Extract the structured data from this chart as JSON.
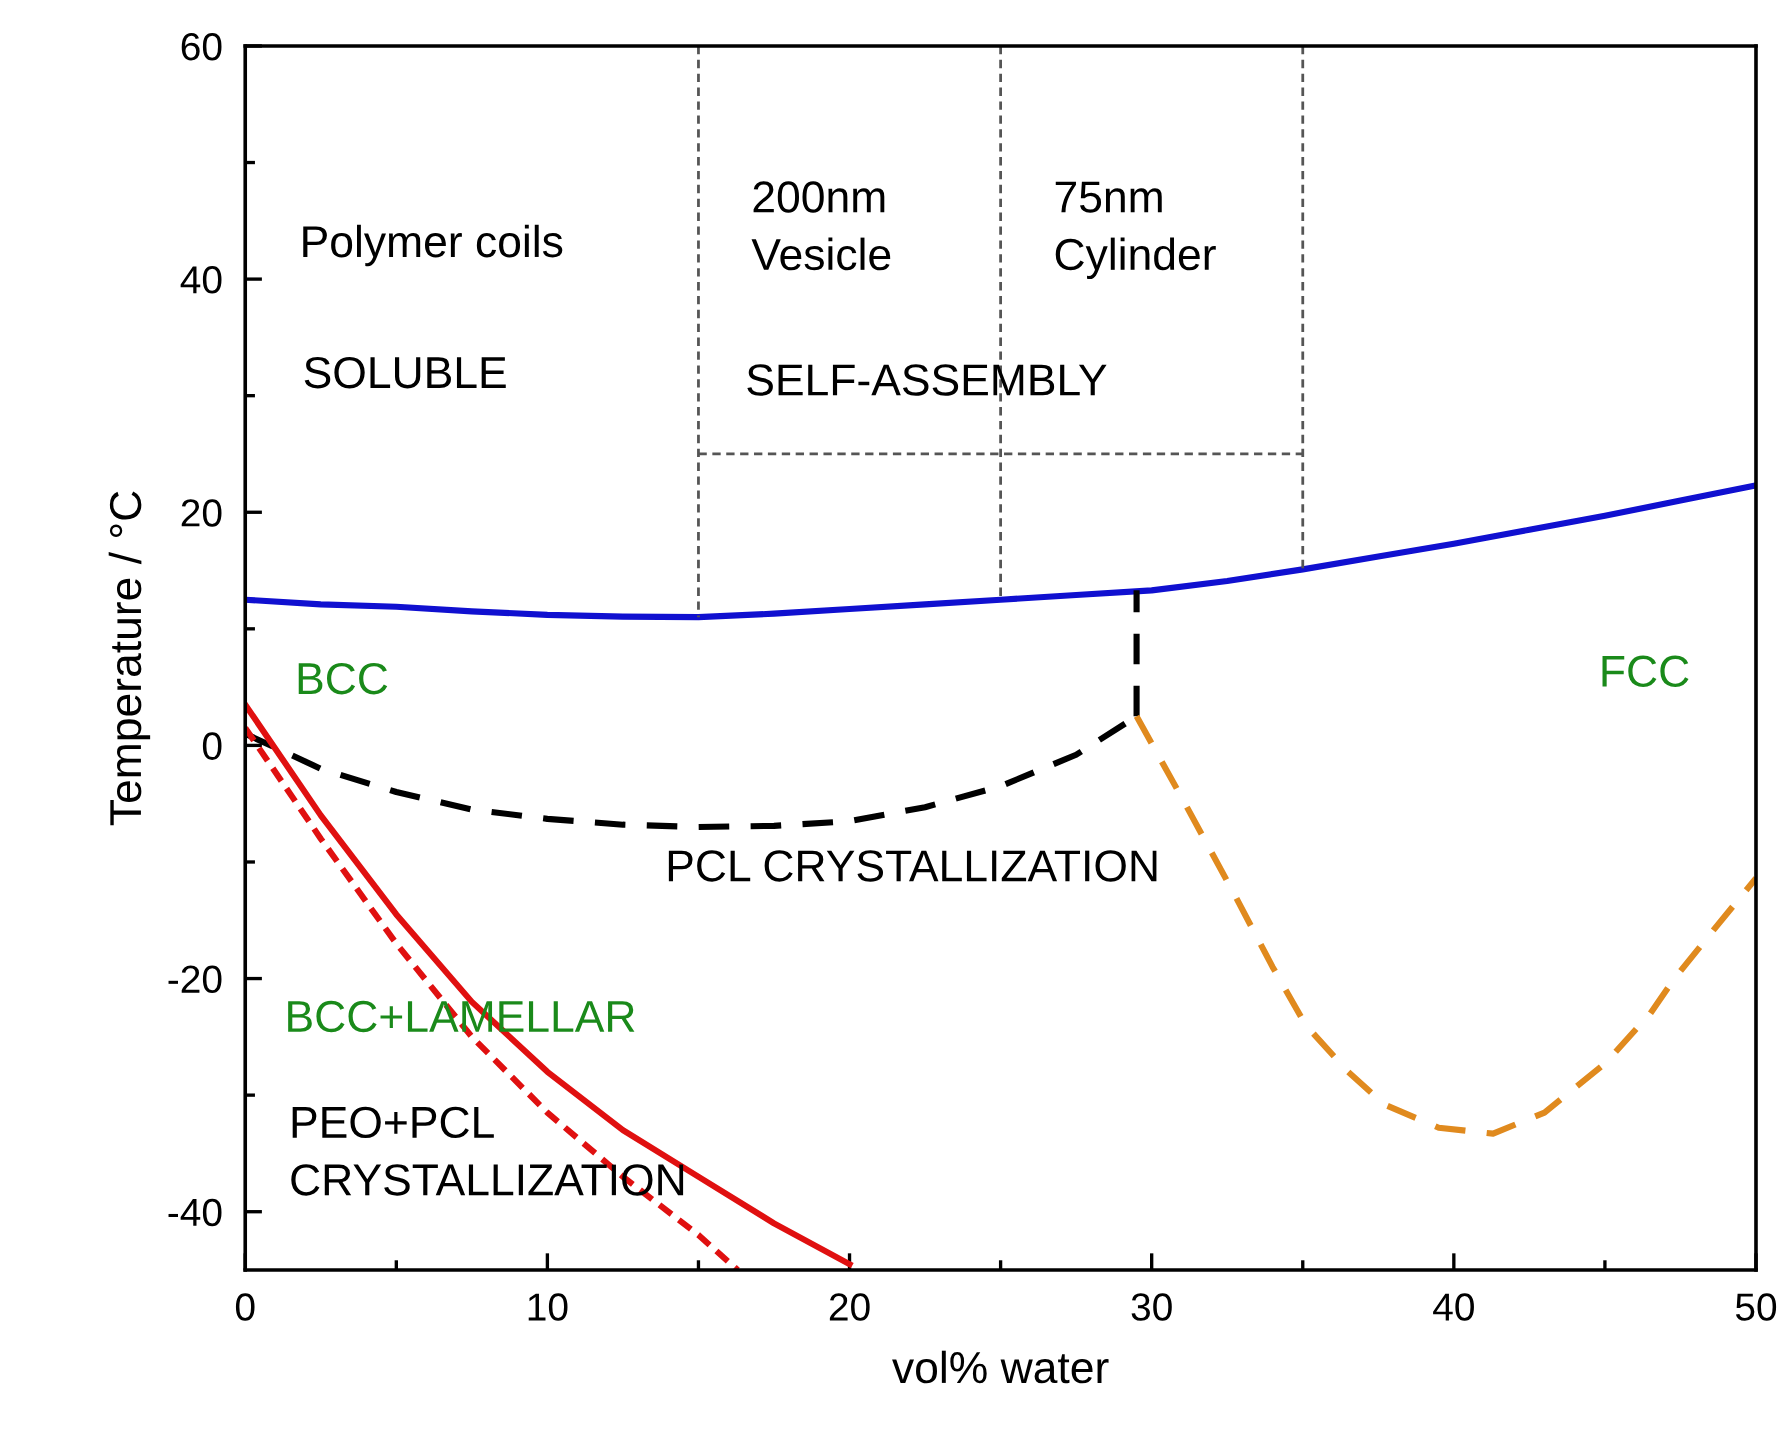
{
  "chart_data": {
    "type": "line",
    "xlabel": "vol% water",
    "ylabel": "Temperature / °C",
    "xlim": [
      0,
      50
    ],
    "ylim": [
      -45,
      60
    ],
    "xticks": [
      0,
      {
        "value": 5,
        "label": null
      },
      10,
      {
        "value": 15,
        "label": null
      },
      20,
      {
        "value": 25,
        "label": null
      },
      30,
      {
        "value": 35,
        "label": null
      },
      40,
      {
        "value": 45,
        "label": null
      },
      50
    ],
    "yticks": [
      {
        "value": -40,
        "label": "-40"
      },
      {
        "value": -30,
        "label": null
      },
      {
        "value": -20,
        "label": "-20"
      },
      {
        "value": -10,
        "label": null
      },
      0,
      {
        "value": 10,
        "label": null
      },
      20,
      {
        "value": 30,
        "label": null
      },
      40,
      {
        "value": 50,
        "label": null
      },
      60
    ],
    "grid": false,
    "legend": false,
    "marker": "none",
    "series": [
      {
        "color": "#1010d0",
        "line_style": "solid",
        "x": [
          0,
          2.5,
          5,
          7.5,
          10,
          12.5,
          15,
          17.5,
          20,
          22.5,
          25,
          27.5,
          30,
          32.5,
          35,
          37.5,
          40,
          42.5,
          45,
          47.5,
          50
        ],
        "values": [
          12.5,
          12.1,
          11.9,
          11.5,
          11.2,
          11.05,
          11,
          11.3,
          11.7,
          12.1,
          12.5,
          12.9,
          13.3,
          14.1,
          15.1,
          16.2,
          17.3,
          18.5,
          19.7,
          21,
          22.3
        ]
      },
      {
        "color": "#000000",
        "line_style": "dashed",
        "x": [
          0,
          2.5,
          5,
          7.5,
          10,
          12.5,
          15,
          17.5,
          20,
          22.5,
          25,
          27.5,
          29.5
        ],
        "values": [
          1,
          -2,
          -4,
          -5.5,
          -6.3,
          -6.8,
          -7,
          -6.9,
          -6.5,
          -5.3,
          -3.5,
          -0.8,
          2.5
        ]
      },
      {
        "color": "#000000",
        "line_style": "dashed",
        "x": [
          29.5,
          29.5
        ],
        "values": [
          2.5,
          13.3
        ]
      },
      {
        "color": "#e08a1e",
        "line_style": "dashed",
        "x": [
          29.5,
          31,
          32.7,
          34,
          35.1,
          36.5,
          37.7,
          39.5,
          41.3,
          43,
          45,
          46.5,
          47.3,
          48.7,
          50
        ],
        "values": [
          2.5,
          -4.5,
          -12.6,
          -19,
          -24,
          -28,
          -30.8,
          -32.8,
          -33.3,
          -31.5,
          -27.3,
          -23,
          -20,
          -15.5,
          -11.4
        ]
      },
      {
        "color": "#e01010",
        "line_style": "solid",
        "x": [
          0,
          2.5,
          5,
          7.5,
          10,
          12.5,
          15,
          17.5,
          20
        ],
        "values": [
          3.5,
          -6,
          -14.5,
          -22,
          -28,
          -33,
          -37,
          -41,
          -44.5
        ]
      },
      {
        "color": "#e01010",
        "line_style": "dotted",
        "x": [
          0,
          2.5,
          5,
          7.5,
          10,
          12.5,
          15,
          16.3
        ],
        "values": [
          1.5,
          -8,
          -17,
          -25,
          -31.5,
          -37,
          -42,
          -45
        ]
      },
      {
        "color": "#555555",
        "line_style": "dashed",
        "x": [
          15,
          15
        ],
        "values": [
          60,
          11
        ]
      },
      {
        "color": "#555555",
        "line_style": "dashed",
        "x": [
          25,
          25
        ],
        "values": [
          60,
          12.5
        ]
      },
      {
        "color": "#555555",
        "line_style": "dashed",
        "x": [
          35,
          35
        ],
        "values": [
          60,
          15.1
        ]
      },
      {
        "color": "#555555",
        "line_style": "dashed",
        "x": [
          15,
          35
        ],
        "values": [
          25,
          25
        ]
      }
    ],
    "annotations": [
      "Polymer coils",
      "SOLUBLE",
      "200nm\nVesicle",
      "75nm\nCylinder",
      "SELF-ASSEMBLY",
      "BCC",
      "FCC",
      "PCL CRYSTALLIZATION",
      "BCC+LAMELLAR",
      "PEO+PCL\nCRYSTALLIZATION"
    ]
  }
}
